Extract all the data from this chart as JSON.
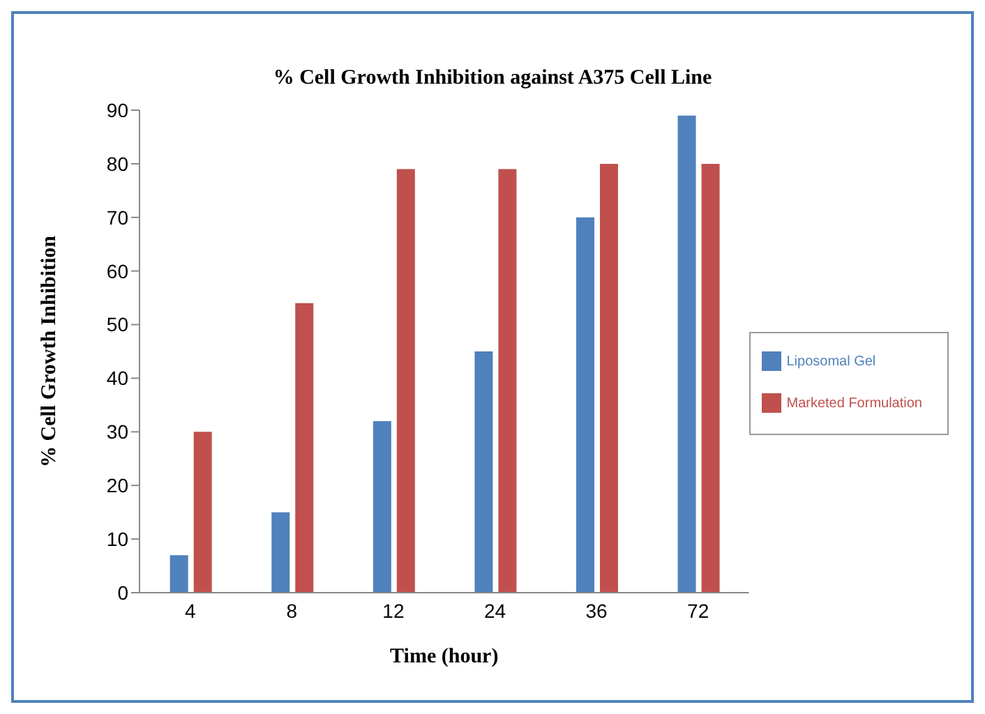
{
  "chart_data": {
    "type": "bar",
    "title": "% Cell Growth Inhibition against A375 Cell Line",
    "xlabel": "Time (hour)",
    "ylabel": "% Cell Growth Inhibition",
    "categories": [
      "4",
      "8",
      "12",
      "24",
      "36",
      "72"
    ],
    "series": [
      {
        "name": "Liposomal Gel",
        "color": "#4f81bd",
        "values": [
          7,
          15,
          32,
          45,
          70,
          89
        ]
      },
      {
        "name": "Marketed Formulation",
        "color": "#c0504d",
        "values": [
          30,
          54,
          79,
          79,
          80,
          80
        ]
      }
    ],
    "ylim": [
      0,
      90
    ],
    "yticks": [
      0,
      10,
      20,
      30,
      40,
      50,
      60,
      70,
      80,
      90
    ],
    "grid": false,
    "legend": "right"
  }
}
